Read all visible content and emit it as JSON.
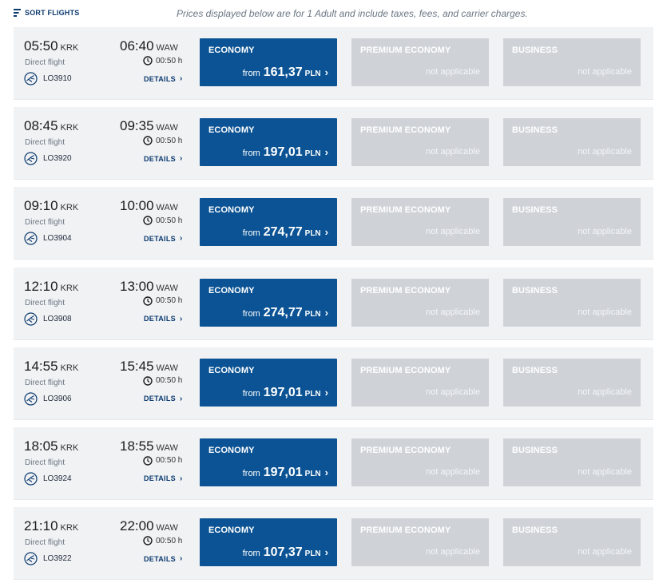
{
  "header": {
    "sort_label": "SORT FLIGHTS",
    "note": "Prices displayed below are for 1 Adult and include taxes, fees, and carrier charges."
  },
  "common": {
    "direct_label": "Direct flight",
    "duration": "00:50 h",
    "details_label": "DETAILS",
    "from_label": "from",
    "currency": "PLN",
    "not_applicable": "not applicable",
    "cabins": [
      "ECONOMY",
      "PREMIUM ECONOMY",
      "BUSINESS"
    ]
  },
  "flights": [
    {
      "dep": "05:50",
      "dep_code": "KRK",
      "arr": "06:40",
      "arr_code": "WAW",
      "flight_no": "LO3910",
      "price": "161,37"
    },
    {
      "dep": "08:45",
      "dep_code": "KRK",
      "arr": "09:35",
      "arr_code": "WAW",
      "flight_no": "LO3920",
      "price": "197,01"
    },
    {
      "dep": "09:10",
      "dep_code": "KRK",
      "arr": "10:00",
      "arr_code": "WAW",
      "flight_no": "LO3904",
      "price": "274,77"
    },
    {
      "dep": "12:10",
      "dep_code": "KRK",
      "arr": "13:00",
      "arr_code": "WAW",
      "flight_no": "LO3908",
      "price": "274,77"
    },
    {
      "dep": "14:55",
      "dep_code": "KRK",
      "arr": "15:45",
      "arr_code": "WAW",
      "flight_no": "LO3906",
      "price": "197,01"
    },
    {
      "dep": "18:05",
      "dep_code": "KRK",
      "arr": "18:55",
      "arr_code": "WAW",
      "flight_no": "LO3924",
      "price": "197,01"
    },
    {
      "dep": "21:10",
      "dep_code": "KRK",
      "arr": "22:00",
      "arr_code": "WAW",
      "flight_no": "LO3922",
      "price": "107,37"
    }
  ],
  "colors": {
    "accent": "#0b5394",
    "disabled": "#cfd3d8",
    "row_bg": "#f1f2f4"
  },
  "icons": {
    "sort": "sort-lines-icon",
    "clock": "clock-icon",
    "airline": "crane-logo-icon",
    "chevron": "chevron-right-icon"
  }
}
